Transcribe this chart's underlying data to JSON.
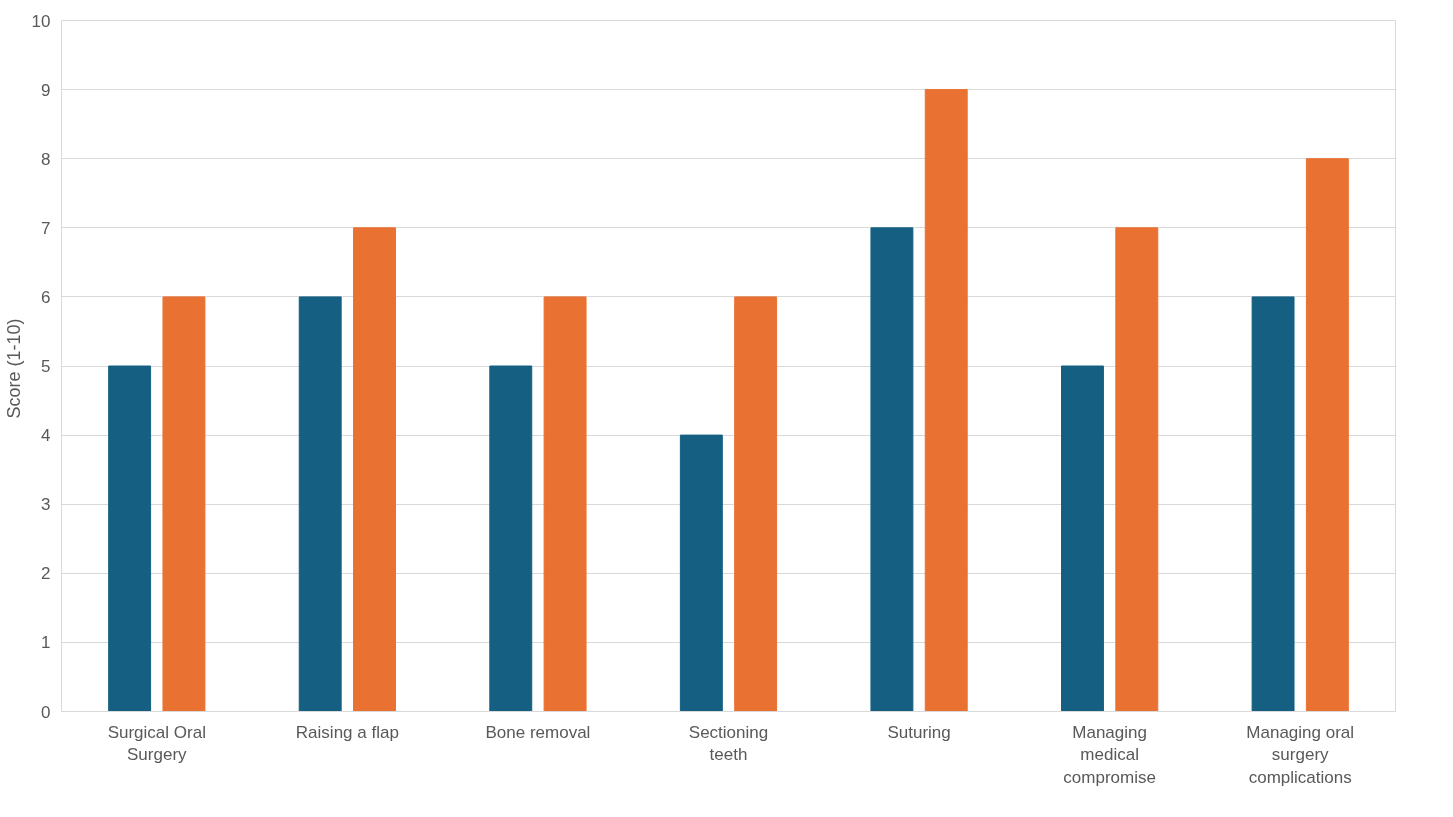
{
  "chart_data": {
    "type": "bar",
    "ylabel": "Score  (1-10)",
    "categories": [
      "Surgical Oral Surgery",
      "Raising a flap",
      "Bone removal",
      "Sectioning teeth",
      "Suturing",
      "Managing medical compromise",
      "Managing oral surgery complications"
    ],
    "series": [
      {
        "color": "#156082",
        "values": [
          5,
          6,
          5,
          4,
          7,
          5,
          6
        ]
      },
      {
        "color": "#e97132",
        "values": [
          6,
          7,
          6,
          6,
          9,
          7,
          8
        ]
      }
    ],
    "ylim": [
      0,
      10
    ],
    "yticks": [
      0,
      1,
      2,
      3,
      4,
      5,
      6,
      7,
      8,
      9,
      10
    ],
    "grid": "y"
  }
}
